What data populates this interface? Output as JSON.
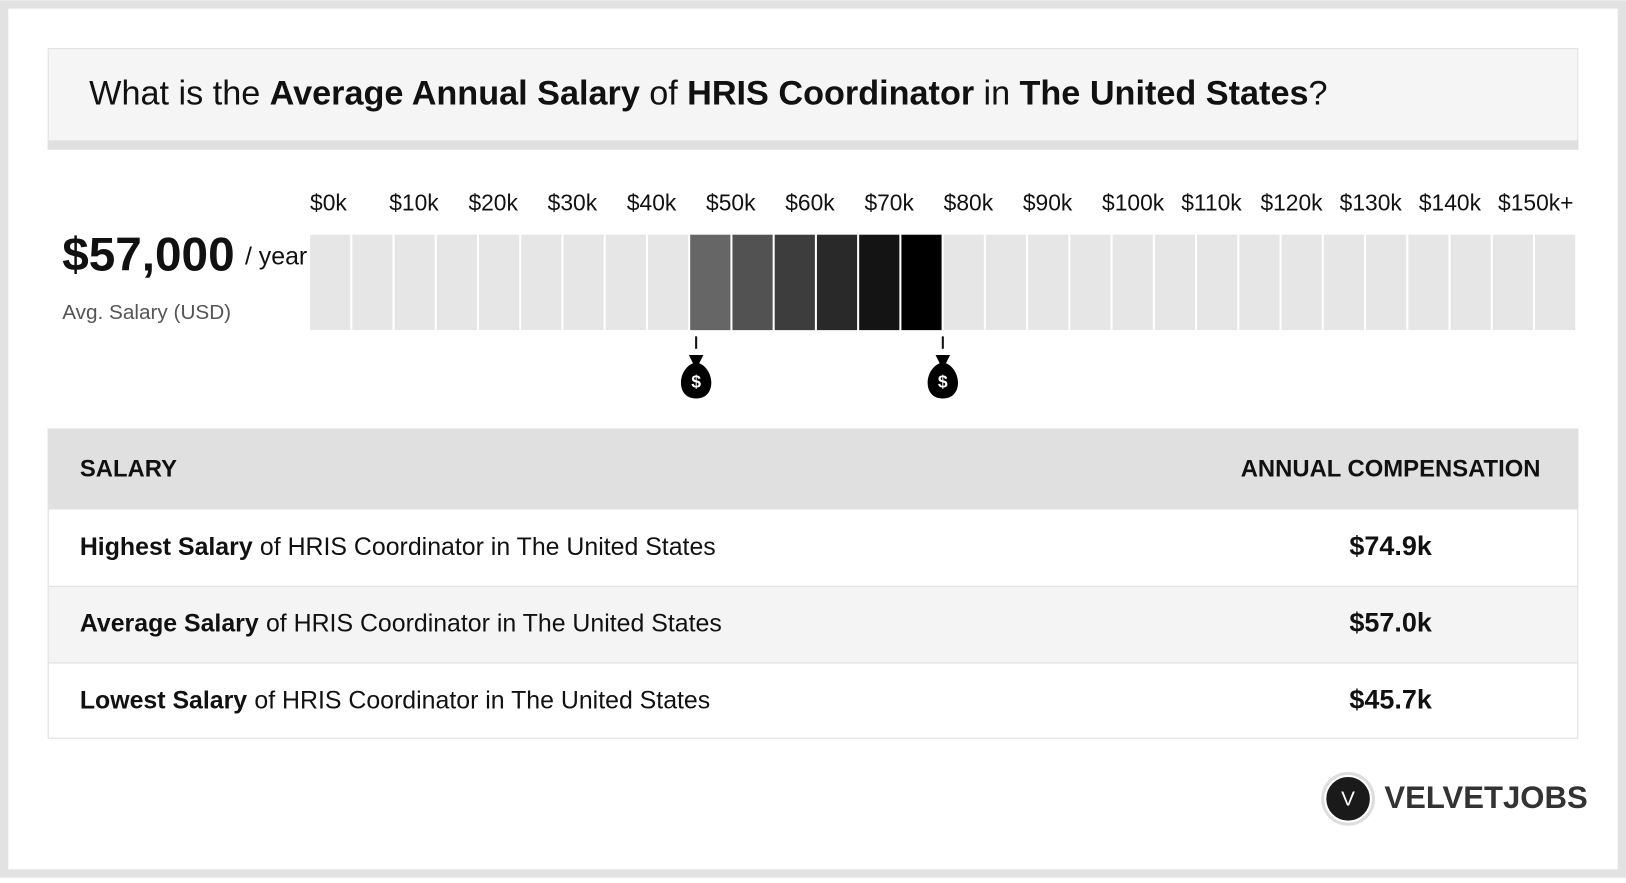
{
  "header": {
    "title_parts": [
      {
        "text": "What is the",
        "bold": false
      },
      {
        "text": "Average Annual Salary",
        "bold": true
      },
      {
        "text": "of",
        "bold": false
      },
      {
        "text": "HRIS Coordinator",
        "bold": true
      },
      {
        "text": "in",
        "bold": false
      },
      {
        "text": "The United States",
        "bold": true
      },
      {
        "text": "?",
        "bold": false
      }
    ]
  },
  "summary": {
    "value": 57000,
    "value_label": "$57,000",
    "unit": "/ year",
    "caption": "Avg. Salary (USD)"
  },
  "range_bar": {
    "xlim": [
      0,
      150000
    ],
    "xticks": [
      {
        "value": 0,
        "label": "$0k"
      },
      {
        "value": 10000,
        "label": "$10k"
      },
      {
        "value": 20000,
        "label": "$20k"
      },
      {
        "value": 30000,
        "label": "$30k"
      },
      {
        "value": 40000,
        "label": "$40k"
      },
      {
        "value": 50000,
        "label": "$50k"
      },
      {
        "value": 60000,
        "label": "$60k"
      },
      {
        "value": 70000,
        "label": "$70k"
      },
      {
        "value": 80000,
        "label": "$80k"
      },
      {
        "value": 90000,
        "label": "$90k"
      },
      {
        "value": 100000,
        "label": "$100k"
      },
      {
        "value": 110000,
        "label": "$110k"
      },
      {
        "value": 120000,
        "label": "$120k"
      },
      {
        "value": 130000,
        "label": "$130k"
      },
      {
        "value": 140000,
        "label": "$140k"
      },
      {
        "value": 150000,
        "label": "$150k+"
      }
    ],
    "low": 45700,
    "high": 74900,
    "marker_symbol": "$"
  },
  "table": {
    "headers": [
      "SALARY",
      "ANNUAL COMPENSATION"
    ],
    "rows": [
      {
        "label_bold": "Highest Salary",
        "label_rest": "of HRIS Coordinator in The United States",
        "value": 74900,
        "value_label": "$74.9k"
      },
      {
        "label_bold": "Average Salary",
        "label_rest": "of HRIS Coordinator in The United States",
        "value": 57000,
        "value_label": "$57.0k"
      },
      {
        "label_bold": "Lowest Salary",
        "label_rest": "of HRIS Coordinator in The United States",
        "value": 45700,
        "value_label": "$45.7k"
      }
    ]
  },
  "logo": {
    "initial": "V",
    "name": "VELVETJOBS"
  }
}
